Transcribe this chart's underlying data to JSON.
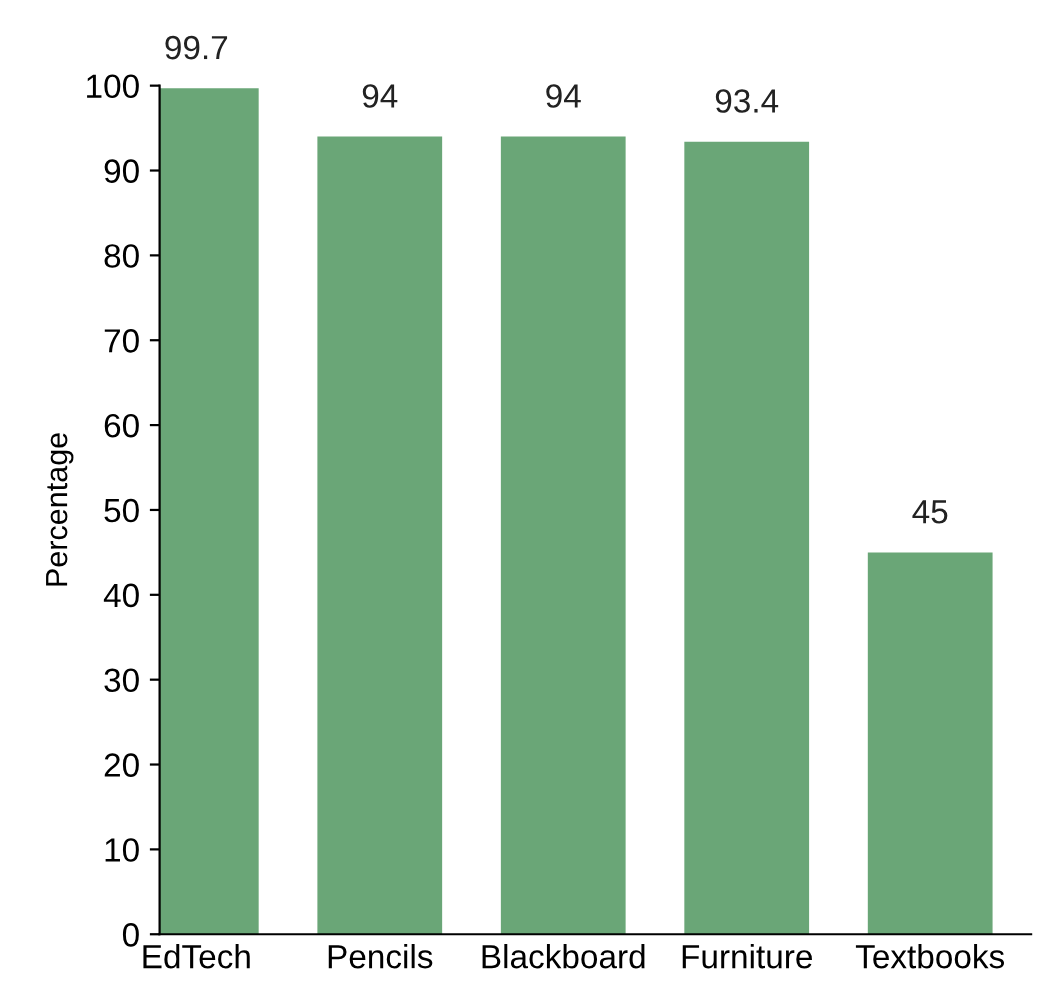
{
  "chart_data": {
    "type": "bar",
    "ylabel": "Percentage",
    "categories": [
      "EdTech",
      "Pencils",
      "Blackboard",
      "Furniture",
      "Textbooks"
    ],
    "values": [
      99.7,
      94,
      94,
      93.4,
      45
    ],
    "color": "#6aa677",
    "ylim": [
      0,
      100
    ],
    "yticks": [
      0,
      10,
      20,
      30,
      40,
      50,
      60,
      70,
      80,
      90,
      100
    ],
    "data_labels": true,
    "grid": false
  }
}
